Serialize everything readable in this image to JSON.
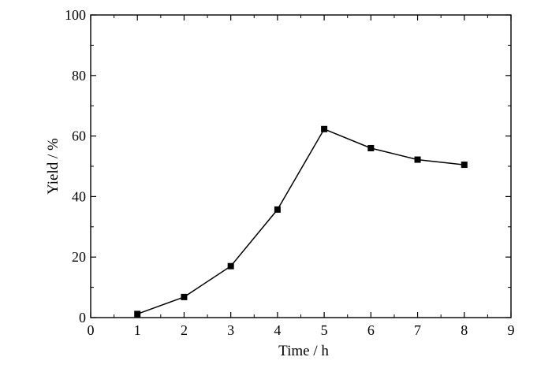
{
  "chart_data": {
    "type": "line",
    "xlabel": "Time / h",
    "ylabel": "Yield / %",
    "xlim": [
      0,
      9
    ],
    "ylim": [
      0,
      100
    ],
    "xticks": [
      0,
      1,
      2,
      3,
      4,
      5,
      6,
      7,
      8,
      9
    ],
    "yticks": [
      0,
      20,
      40,
      60,
      80,
      100
    ],
    "grid": false,
    "marker": "square",
    "colors": {
      "line": "#000000",
      "marker": "#000000",
      "axis": "#000000"
    },
    "series": [
      {
        "x": [
          1,
          2,
          3,
          4,
          5,
          6,
          7,
          8
        ],
        "y": [
          1.2,
          6.8,
          17.0,
          35.7,
          62.3,
          56.0,
          52.2,
          50.5
        ]
      }
    ]
  }
}
